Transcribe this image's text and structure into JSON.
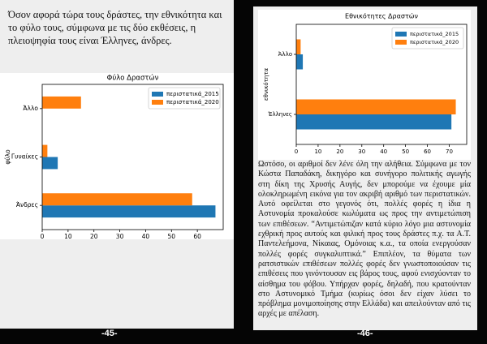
{
  "pages": [
    {
      "text": "Όσον αφορά τώρα τους δράστες, την εθνικότητα και το φύλο τους, σύμφωνα με τις δύο εκθέσεις, η πλειοψηφία τους είναι Έλληνες, άνδρες.",
      "page_number": "-45-"
    },
    {
      "text": "Ωστόσο, οι αριθμοί δεν λένε όλη την αλήθεια. Σύμφωνα με τον Κώστα Παπαδάκη, δικηγόρο και συνήγορο πολιτικής αγωγής στη δίκη της Χρυσής Αυγής, δεν μπορούμε να έχουμε μία ολοκληρωμένη εικόνα για τον ακριβή αριθμό των περιστατικών. Αυτό οφείλεται στο γεγονός ότι, πολλές φορές η ίδια η Αστυνομία προκαλούσε κωλύματα ως προς την αντιμετώπιση των επιθέσεων. “Αντιμετώπιζαν κατά κύριο λόγο μια αστυνομία εχθρική προς αυτούς και φιλική προς τους δράστες π.χ. τα Α.Τ. Παντελεήμονα, Νίκαιας, Ομόνοιας κ.α., τα οποία ενεργούσαν πολλές φορές συγκαλυπτικά.” Επιπλέον, τα θύματα των ρατσιστικών επιθέσεων πολλές φορές δεν γνωστοποιούσαν τις επιθέσεις που γινόντουσαν εις βάρος τους, αφού ενισχύονταν το αίσθημα του φόβου. Υπήρχαν φορές, δηλαδή, που κρατούνταν στο Αστυνομικό Τμήμα (κυρίως όσοι δεν είχαν λύσει το πρόβλημα μονιμοποίησης στην Ελλάδα) και απειλούνταν από τις αρχές με απέλαση.",
      "page_number": "-46-"
    }
  ],
  "chart_data": [
    {
      "type": "hbar",
      "title": "Φύλο Δραστών",
      "ylabel": "φύλο",
      "categories": [
        "Άνδρες",
        "Γυναίκες",
        "Άλλο"
      ],
      "series": [
        {
          "name": "περιστατικά_2015",
          "color": "#1f77b4",
          "values": [
            67,
            6,
            0
          ]
        },
        {
          "name": "περιστατικά_2020",
          "color": "#ff7f0e",
          "values": [
            58,
            2,
            15
          ]
        }
      ],
      "xlim": [
        0,
        70
      ],
      "xticks": [
        0,
        10,
        20,
        30,
        40,
        50,
        60
      ],
      "legend": "upper right"
    },
    {
      "type": "hbar",
      "title": "Εθνικότητες Δραστών",
      "ylabel": "εθνικότητα",
      "categories": [
        "Έλληνες",
        "Άλλο"
      ],
      "series": [
        {
          "name": "περιστατικά_2015",
          "color": "#1f77b4",
          "values": [
            71,
            3
          ]
        },
        {
          "name": "περιστατικά_2020",
          "color": "#ff7f0e",
          "values": [
            73,
            2
          ]
        }
      ],
      "xlim": [
        0,
        78
      ],
      "xticks": [
        0,
        10,
        20,
        30,
        40,
        50,
        60,
        70
      ],
      "legend": "upper right"
    }
  ]
}
